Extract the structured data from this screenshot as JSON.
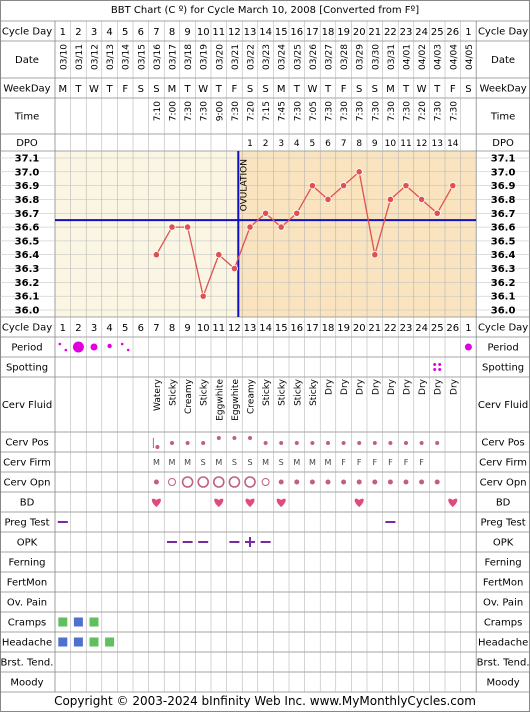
{
  "title": "BBT Chart (C º) for Cycle March 10, 2008  [Converted from Fº]",
  "copyright": "Copyright © 2003-2024 bInfinity Web Inc.    www.MyMonthlyCycles.com",
  "row_labels": {
    "cycle_day": "Cycle Day",
    "date": "Date",
    "weekday": "WeekDay",
    "time": "Time",
    "dpo": "DPO",
    "period": "Period",
    "spotting": "Spotting",
    "cerv_fluid": "Cerv Fluid",
    "cerv_pos": "Cerv Pos",
    "cerv_firm": "Cerv Firm",
    "cerv_opn": "Cerv Opn",
    "bd": "BD",
    "preg_test": "Preg Test",
    "opk": "OPK",
    "ferning": "Ferning",
    "fertmon": "FertMon",
    "ov_pain": "Ov. Pain",
    "cramps": "Cramps",
    "headache": "Headache",
    "brst_tend": "Brst. Tend.",
    "moody": "Moody"
  },
  "ovulation_label": "OVULATION",
  "colors": {
    "temp_line": "#e05050",
    "coverline": "#1010c0",
    "pre_ov_bg": "#fbf6e4",
    "post_ov_bg": "#fae4c0",
    "period": "#e000e0",
    "cervix": "#c06080",
    "bd": "#e04a80",
    "cramps": "#60c060",
    "headache": "#5070d0",
    "opk": "#7a2aa0"
  },
  "chart_data": {
    "type": "line",
    "ylim": [
      36.0,
      37.1
    ],
    "yticks": [
      "37.1",
      "37.0",
      "36.9",
      "36.8",
      "36.7",
      "36.6",
      "36.5",
      "36.4",
      "36.3",
      "36.2",
      "36.1",
      "36.0"
    ],
    "coverline": 36.65,
    "ovulation_day": 12,
    "cycle_days": [
      1,
      2,
      3,
      4,
      5,
      6,
      7,
      8,
      9,
      10,
      11,
      12,
      13,
      14,
      15,
      16,
      17,
      18,
      19,
      20,
      21,
      22,
      23,
      24,
      25,
      26,
      1
    ],
    "dates": [
      "03/10",
      "03/11",
      "03/12",
      "03/13",
      "03/14",
      "03/15",
      "03/16",
      "03/17",
      "03/18",
      "03/19",
      "03/20",
      "03/21",
      "03/22",
      "03/23",
      "03/24",
      "03/25",
      "03/26",
      "03/27",
      "03/28",
      "03/29",
      "03/30",
      "03/31",
      "04/01",
      "04/02",
      "04/03",
      "04/04",
      "04/05"
    ],
    "weekdays": [
      "M",
      "T",
      "W",
      "T",
      "F",
      "S",
      "S",
      "M",
      "T",
      "W",
      "T",
      "F",
      "S",
      "S",
      "M",
      "T",
      "W",
      "T",
      "F",
      "S",
      "S",
      "M",
      "T",
      "W",
      "T",
      "F",
      "S"
    ],
    "times": [
      "",
      "",
      "",
      "",
      "",
      "",
      "7:10",
      "7:00",
      "7:30",
      "7:30",
      "9:00",
      "7:30",
      "7:20",
      "7:15",
      "7:45",
      "7:30",
      "7:05",
      "7:30",
      "7:30",
      "7:30",
      "7:30",
      "7:30",
      "7:30",
      "7:20",
      "7:30",
      "7:30",
      ""
    ],
    "dpo": [
      "",
      "",
      "",
      "",
      "",
      "",
      "",
      "",
      "",
      "",
      "",
      "",
      "1",
      "2",
      "3",
      "4",
      "5",
      "6",
      "7",
      "8",
      "9",
      "10",
      "11",
      "12",
      "13",
      "14",
      ""
    ],
    "temps": [
      null,
      null,
      null,
      null,
      null,
      null,
      36.4,
      36.6,
      36.6,
      36.1,
      36.4,
      36.3,
      36.6,
      36.7,
      36.6,
      36.7,
      36.9,
      36.8,
      36.9,
      37.0,
      36.4,
      36.8,
      36.9,
      36.8,
      36.7,
      36.9,
      null
    ]
  },
  "rows": {
    "period": [
      "spot",
      "heavy",
      "medium",
      "light",
      "spot",
      "",
      "",
      "",
      "",
      "",
      "",
      "",
      "",
      "",
      "",
      "",
      "",
      "",
      "",
      "",
      "",
      "",
      "",
      "",
      "",
      "",
      "medium"
    ],
    "spotting": [
      "",
      "",
      "",
      "",
      "",
      "",
      "",
      "",
      "",
      "",
      "",
      "",
      "",
      "",
      "",
      "",
      "",
      "",
      "",
      "",
      "",
      "",
      "",
      "",
      "yes",
      "",
      ""
    ],
    "cerv_fluid": [
      "",
      "",
      "",
      "",
      "",
      "",
      "Watery",
      "Sticky",
      "Creamy",
      "Sticky",
      "Eggwhite",
      "Eggwhite",
      "Creamy",
      "Sticky",
      "Sticky",
      "Sticky",
      "Sticky",
      "Dry",
      "Dry",
      "Dry",
      "Dry",
      "Dry",
      "Dry",
      "Dry",
      "Dry",
      "Dry",
      ""
    ],
    "cerv_pos": [
      "",
      "",
      "",
      "",
      "",
      "",
      "low",
      "mid",
      "mid",
      "mid",
      "high",
      "high",
      "high",
      "mid",
      "mid",
      "mid",
      "mid",
      "mid",
      "mid",
      "mid",
      "mid",
      "mid",
      "mid",
      "mid",
      "mid",
      "",
      ""
    ],
    "cerv_firm": [
      "",
      "",
      "",
      "",
      "",
      "",
      "M",
      "M",
      "M",
      "S",
      "M",
      "S",
      "S",
      "M",
      "S",
      "M",
      "M",
      "M",
      "F",
      "F",
      "F",
      "F",
      "F",
      "F",
      "",
      "",
      ""
    ],
    "cerv_opn": [
      "",
      "",
      "",
      "",
      "",
      "",
      "closed",
      "medium",
      "open",
      "open",
      "open",
      "open",
      "open",
      "medium",
      "closed",
      "closed",
      "closed",
      "closed",
      "closed",
      "closed",
      "closed",
      "closed",
      "closed",
      "closed",
      "closed",
      "",
      ""
    ],
    "bd": [
      0,
      0,
      0,
      0,
      0,
      0,
      1,
      0,
      0,
      0,
      1,
      0,
      1,
      0,
      1,
      0,
      0,
      0,
      0,
      1,
      0,
      0,
      0,
      0,
      0,
      1,
      0
    ],
    "preg_test": [
      "neg",
      "",
      "",
      "",
      "",
      "",
      "",
      "",
      "",
      "",
      "",
      "",
      "",
      "",
      "",
      "",
      "",
      "",
      "",
      "",
      "",
      "neg",
      "",
      "",
      "",
      "",
      ""
    ],
    "opk": [
      "",
      "",
      "",
      "",
      "",
      "",
      "",
      "neg",
      "neg",
      "neg",
      "",
      "neg",
      "pos",
      "neg",
      "",
      "",
      "",
      "",
      "",
      "",
      "",
      "",
      "",
      "",
      "",
      "",
      ""
    ],
    "cramps": [
      1,
      1,
      1,
      0,
      0,
      0,
      0,
      0,
      0,
      0,
      0,
      0,
      0,
      0,
      0,
      0,
      0,
      0,
      0,
      0,
      0,
      0,
      0,
      0,
      0,
      0,
      0
    ],
    "headache": [
      1,
      1,
      1,
      1,
      0,
      0,
      0,
      0,
      0,
      0,
      0,
      0,
      0,
      0,
      0,
      0,
      0,
      0,
      0,
      0,
      0,
      0,
      0,
      0,
      0,
      0,
      0
    ]
  }
}
